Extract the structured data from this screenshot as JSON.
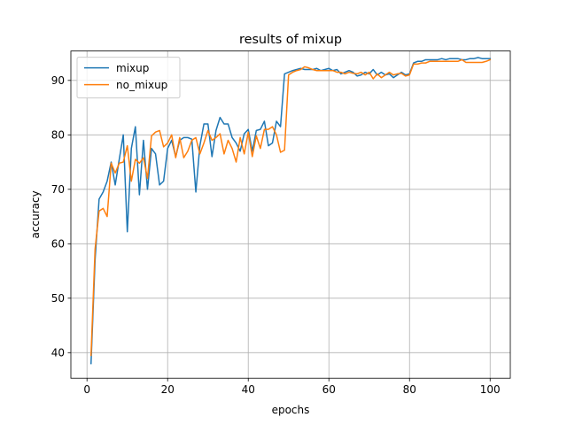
{
  "chart_data": {
    "type": "line",
    "title": "results of mixup",
    "xlabel": "epochs",
    "ylabel": "accuracy",
    "xlim": [
      -4,
      105
    ],
    "ylim": [
      35.3,
      95.4
    ],
    "xticks": [
      0,
      20,
      40,
      60,
      80,
      100
    ],
    "yticks": [
      40,
      50,
      60,
      70,
      80,
      90
    ],
    "grid": true,
    "legend_position": "top-left",
    "series": [
      {
        "name": "mixup",
        "color": "#1f77b4",
        "x": [
          1,
          2,
          3,
          4,
          5,
          6,
          7,
          8,
          9,
          10,
          11,
          12,
          13,
          14,
          15,
          16,
          17,
          18,
          19,
          20,
          21,
          22,
          23,
          24,
          25,
          26,
          27,
          28,
          29,
          30,
          31,
          32,
          33,
          34,
          35,
          36,
          37,
          38,
          39,
          40,
          41,
          42,
          43,
          44,
          45,
          46,
          47,
          48,
          49,
          50,
          51,
          52,
          53,
          54,
          55,
          56,
          57,
          58,
          59,
          60,
          61,
          62,
          63,
          64,
          65,
          66,
          67,
          68,
          69,
          70,
          71,
          72,
          73,
          74,
          75,
          76,
          77,
          78,
          79,
          80,
          81,
          82,
          83,
          84,
          85,
          86,
          87,
          88,
          89,
          90,
          91,
          92,
          93,
          94,
          95,
          96,
          97,
          98,
          99,
          100
        ],
        "values": [
          38.0,
          57.0,
          68.2,
          69.5,
          71.5,
          75.0,
          70.8,
          75.5,
          80.0,
          62.2,
          77.5,
          81.5,
          69.0,
          79.0,
          70.0,
          77.5,
          76.5,
          70.8,
          71.5,
          77.5,
          79.0,
          76.0,
          79.0,
          79.5,
          79.5,
          79.2,
          69.5,
          78.0,
          82.0,
          82.0,
          76.0,
          80.8,
          83.2,
          82.0,
          82.0,
          79.5,
          78.5,
          77.0,
          80.2,
          81.0,
          77.0,
          80.8,
          81.0,
          82.5,
          78.0,
          78.5,
          82.5,
          81.5,
          91.2,
          91.5,
          91.8,
          92.0,
          92.2,
          92.0,
          92.0,
          92.0,
          92.2,
          91.8,
          92.0,
          92.2,
          91.8,
          92.0,
          91.2,
          91.5,
          91.8,
          91.5,
          90.8,
          91.0,
          91.5,
          91.2,
          92.0,
          91.0,
          91.5,
          91.0,
          91.2,
          90.5,
          91.0,
          91.5,
          91.0,
          91.2,
          93.2,
          93.5,
          93.5,
          93.8,
          93.8,
          93.8,
          93.8,
          94.0,
          93.8,
          94.0,
          94.0,
          94.0,
          93.8,
          93.8,
          94.0,
          94.0,
          94.2,
          94.0,
          94.0,
          94.0
        ]
      },
      {
        "name": "no_mixup",
        "color": "#ff7f0e",
        "x": [
          1,
          2,
          3,
          4,
          5,
          6,
          7,
          8,
          9,
          10,
          11,
          12,
          13,
          14,
          15,
          16,
          17,
          18,
          19,
          20,
          21,
          22,
          23,
          24,
          25,
          26,
          27,
          28,
          29,
          30,
          31,
          32,
          33,
          34,
          35,
          36,
          37,
          38,
          39,
          40,
          41,
          42,
          43,
          44,
          45,
          46,
          47,
          48,
          49,
          50,
          51,
          52,
          53,
          54,
          55,
          56,
          57,
          58,
          59,
          60,
          61,
          62,
          63,
          64,
          65,
          66,
          67,
          68,
          69,
          70,
          71,
          72,
          73,
          74,
          75,
          76,
          77,
          78,
          79,
          80,
          81,
          82,
          83,
          84,
          85,
          86,
          87,
          88,
          89,
          90,
          91,
          92,
          93,
          94,
          95,
          96,
          97,
          98,
          99,
          100
        ],
        "values": [
          39.5,
          59.0,
          66.0,
          66.5,
          65.0,
          74.8,
          73.0,
          74.8,
          75.0,
          78.0,
          71.5,
          75.5,
          74.8,
          75.8,
          72.0,
          79.8,
          80.5,
          80.8,
          77.8,
          78.5,
          80.0,
          75.8,
          79.5,
          75.8,
          77.0,
          79.0,
          79.5,
          76.5,
          78.5,
          80.8,
          79.0,
          79.5,
          80.2,
          76.5,
          79.0,
          77.5,
          75.0,
          79.5,
          76.5,
          80.5,
          76.0,
          79.8,
          77.5,
          81.0,
          81.0,
          81.5,
          80.0,
          76.8,
          77.2,
          91.0,
          91.5,
          91.8,
          92.0,
          92.5,
          92.3,
          92.0,
          91.8,
          91.8,
          91.8,
          91.8,
          91.8,
          91.5,
          91.5,
          91.2,
          91.5,
          91.3,
          91.2,
          91.5,
          91.0,
          91.5,
          90.3,
          91.2,
          90.5,
          91.0,
          91.5,
          91.0,
          91.2,
          91.3,
          90.8,
          91.0,
          93.0,
          93.0,
          93.2,
          93.2,
          93.5,
          93.5,
          93.5,
          93.5,
          93.5,
          93.5,
          93.5,
          93.5,
          93.8,
          93.3,
          93.3,
          93.3,
          93.3,
          93.3,
          93.5,
          93.8
        ]
      }
    ]
  }
}
